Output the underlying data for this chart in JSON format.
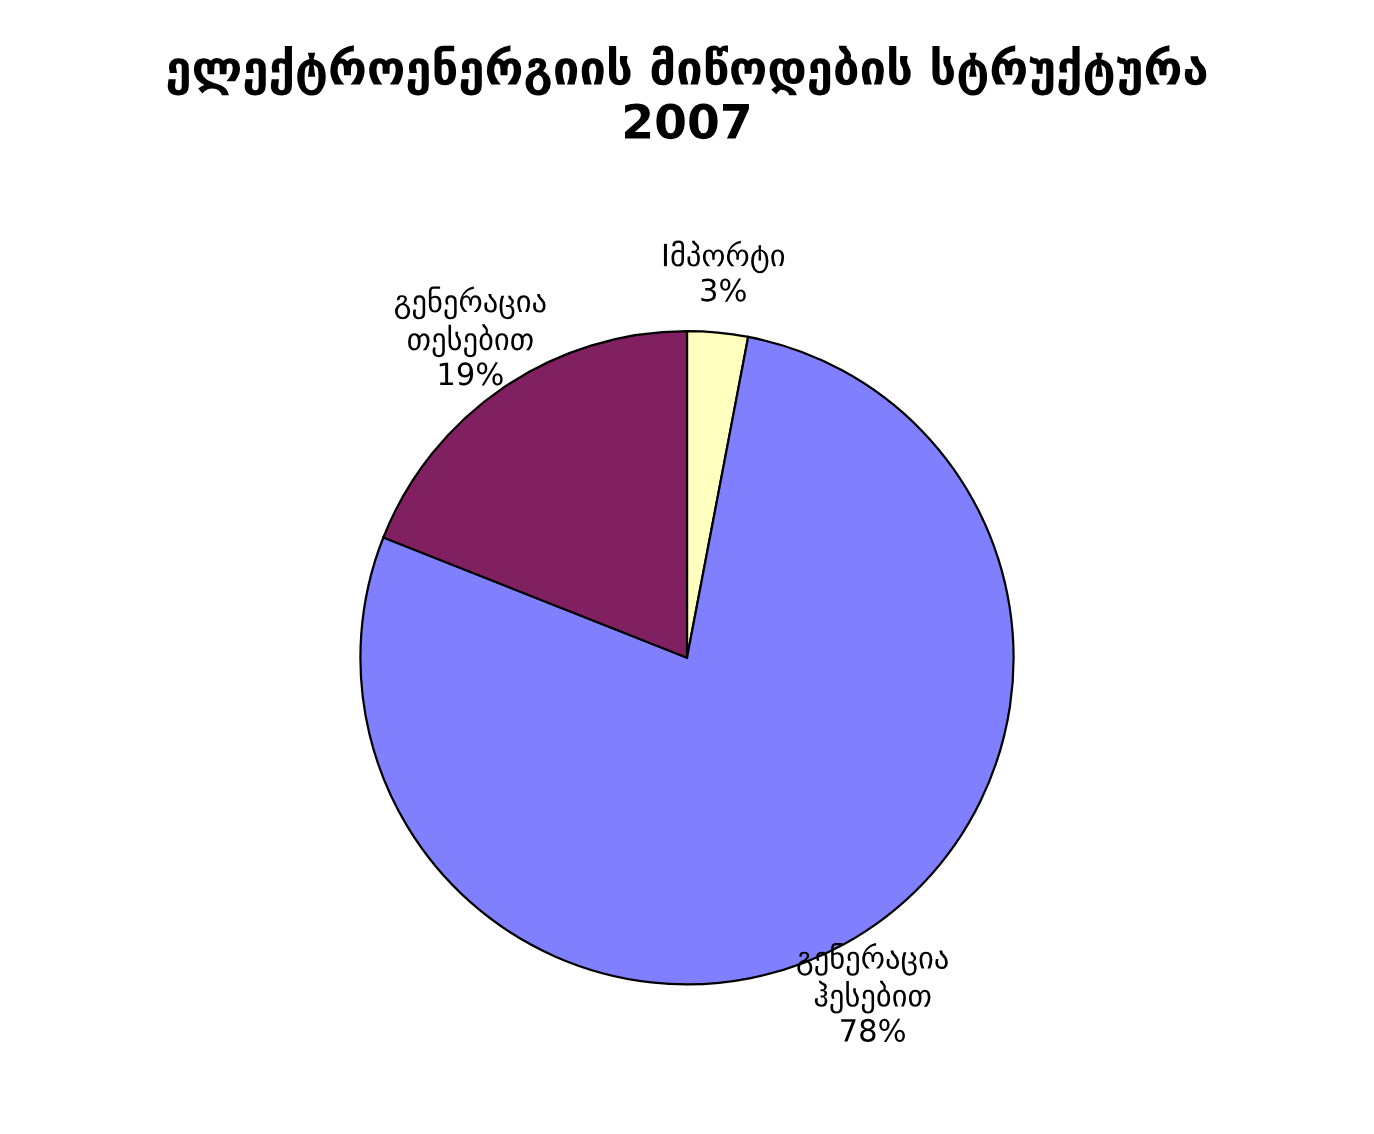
{
  "chart_data": {
    "type": "pie",
    "title": "ელექტროენერგიის მიწოდების სტრუქტურა\n2007",
    "categories": [
      "Iმპორტი",
      "გენერაცია\nჰესებით",
      "გენერაცია\nთესებით"
    ],
    "values": [
      3,
      78,
      19
    ],
    "value_labels": [
      "3%",
      "78%",
      "19%"
    ],
    "colors": [
      "#ffffc0",
      "#8080ff",
      "#802060"
    ]
  }
}
